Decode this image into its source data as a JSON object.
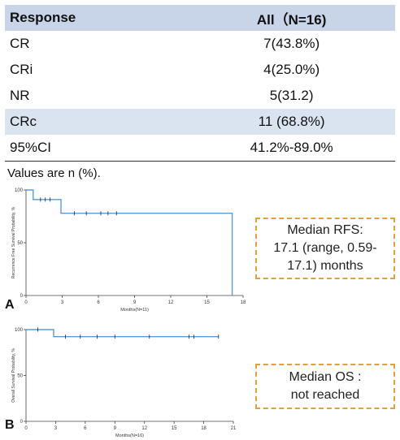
{
  "table": {
    "headers": [
      "Response",
      "All（N=16)"
    ],
    "rows": [
      {
        "label": "CR",
        "value": "7(43.8%)"
      },
      {
        "label": "CRi",
        "value": "4(25.0%)"
      },
      {
        "label": "NR",
        "value": "5(31.2)"
      },
      {
        "label": "CRc",
        "value": "11 (68.8%)"
      },
      {
        "label": "95%CI",
        "value": "41.2%-89.0%"
      }
    ],
    "note": "Values are n (%)."
  },
  "panels": {
    "a_label": "A",
    "b_label": "B",
    "a_box_line1": "Median RFS:",
    "a_box_line2": "17.1 (range, 0.59-",
    "a_box_line3": "17.1) months",
    "b_box_line1": "Median OS :",
    "b_box_line2": "not reached"
  },
  "colors": {
    "line": "#5b9bd5",
    "header_bg": "#c8d5e8",
    "box_border": "#e0a03a"
  },
  "chart_data": [
    {
      "type": "line",
      "xlabel": "Months(N=11)",
      "ylabel": "Recurrence Free Survival Probability, %",
      "xlim": [
        0,
        18
      ],
      "ylim": [
        0,
        100
      ],
      "xticks": [
        0,
        3,
        6,
        9,
        12,
        15,
        18
      ],
      "yticks": [
        0,
        50,
        100
      ],
      "series": [
        {
          "step": [
            [
              0,
              100
            ],
            [
              0.59,
              100
            ],
            [
              0.59,
              90.9
            ],
            [
              2.9,
              90.9
            ],
            [
              2.9,
              77.9
            ],
            [
              17.1,
              77.9
            ],
            [
              17.1,
              0
            ]
          ]
        }
      ],
      "censor_x": [
        1.2,
        1.6,
        2.0,
        4.0,
        5.0,
        6.2,
        6.8,
        7.5
      ]
    },
    {
      "type": "line",
      "xlabel": "Months(N=16)",
      "ylabel": "Overall Survival Probability, %",
      "xlim": [
        0,
        21
      ],
      "ylim": [
        0,
        100
      ],
      "xticks": [
        0,
        3,
        6,
        9,
        12,
        15,
        18,
        21
      ],
      "yticks": [
        0,
        50,
        100
      ],
      "series": [
        {
          "step": [
            [
              0,
              100
            ],
            [
              2.8,
              100
            ],
            [
              2.8,
              92.3
            ],
            [
              19.5,
              92.3
            ]
          ]
        }
      ],
      "censor_x": [
        1.2,
        4.0,
        5.5,
        7.2,
        9.0,
        12.5,
        16.5,
        17.0,
        19.5
      ]
    }
  ]
}
